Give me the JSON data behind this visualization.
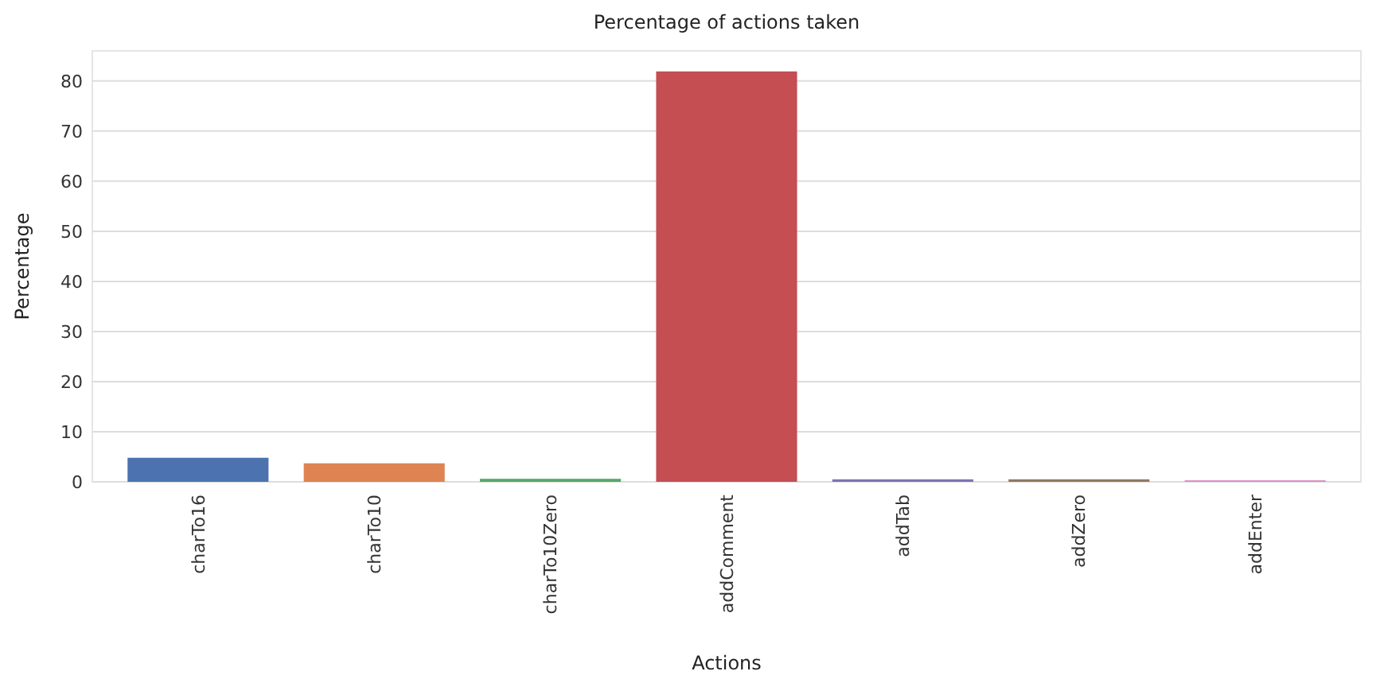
{
  "chart_data": {
    "type": "bar",
    "title": "Percentage of actions taken",
    "xlabel": "Actions",
    "ylabel": "Percentage",
    "categories": [
      "charTo16",
      "charTo10",
      "charTo10Zero",
      "addComment",
      "addTab",
      "addZero",
      "addEnter"
    ],
    "values": [
      4.8,
      3.7,
      0.6,
      81.9,
      0.5,
      0.5,
      0.3
    ],
    "colors": [
      "#4c72b0",
      "#dd8452",
      "#55a868",
      "#c44e52",
      "#8172b3",
      "#937860",
      "#da8bc3"
    ],
    "ylim": [
      0,
      86
    ],
    "yticks": [
      0,
      10,
      20,
      30,
      40,
      50,
      60,
      70,
      80
    ],
    "grid": "y"
  }
}
